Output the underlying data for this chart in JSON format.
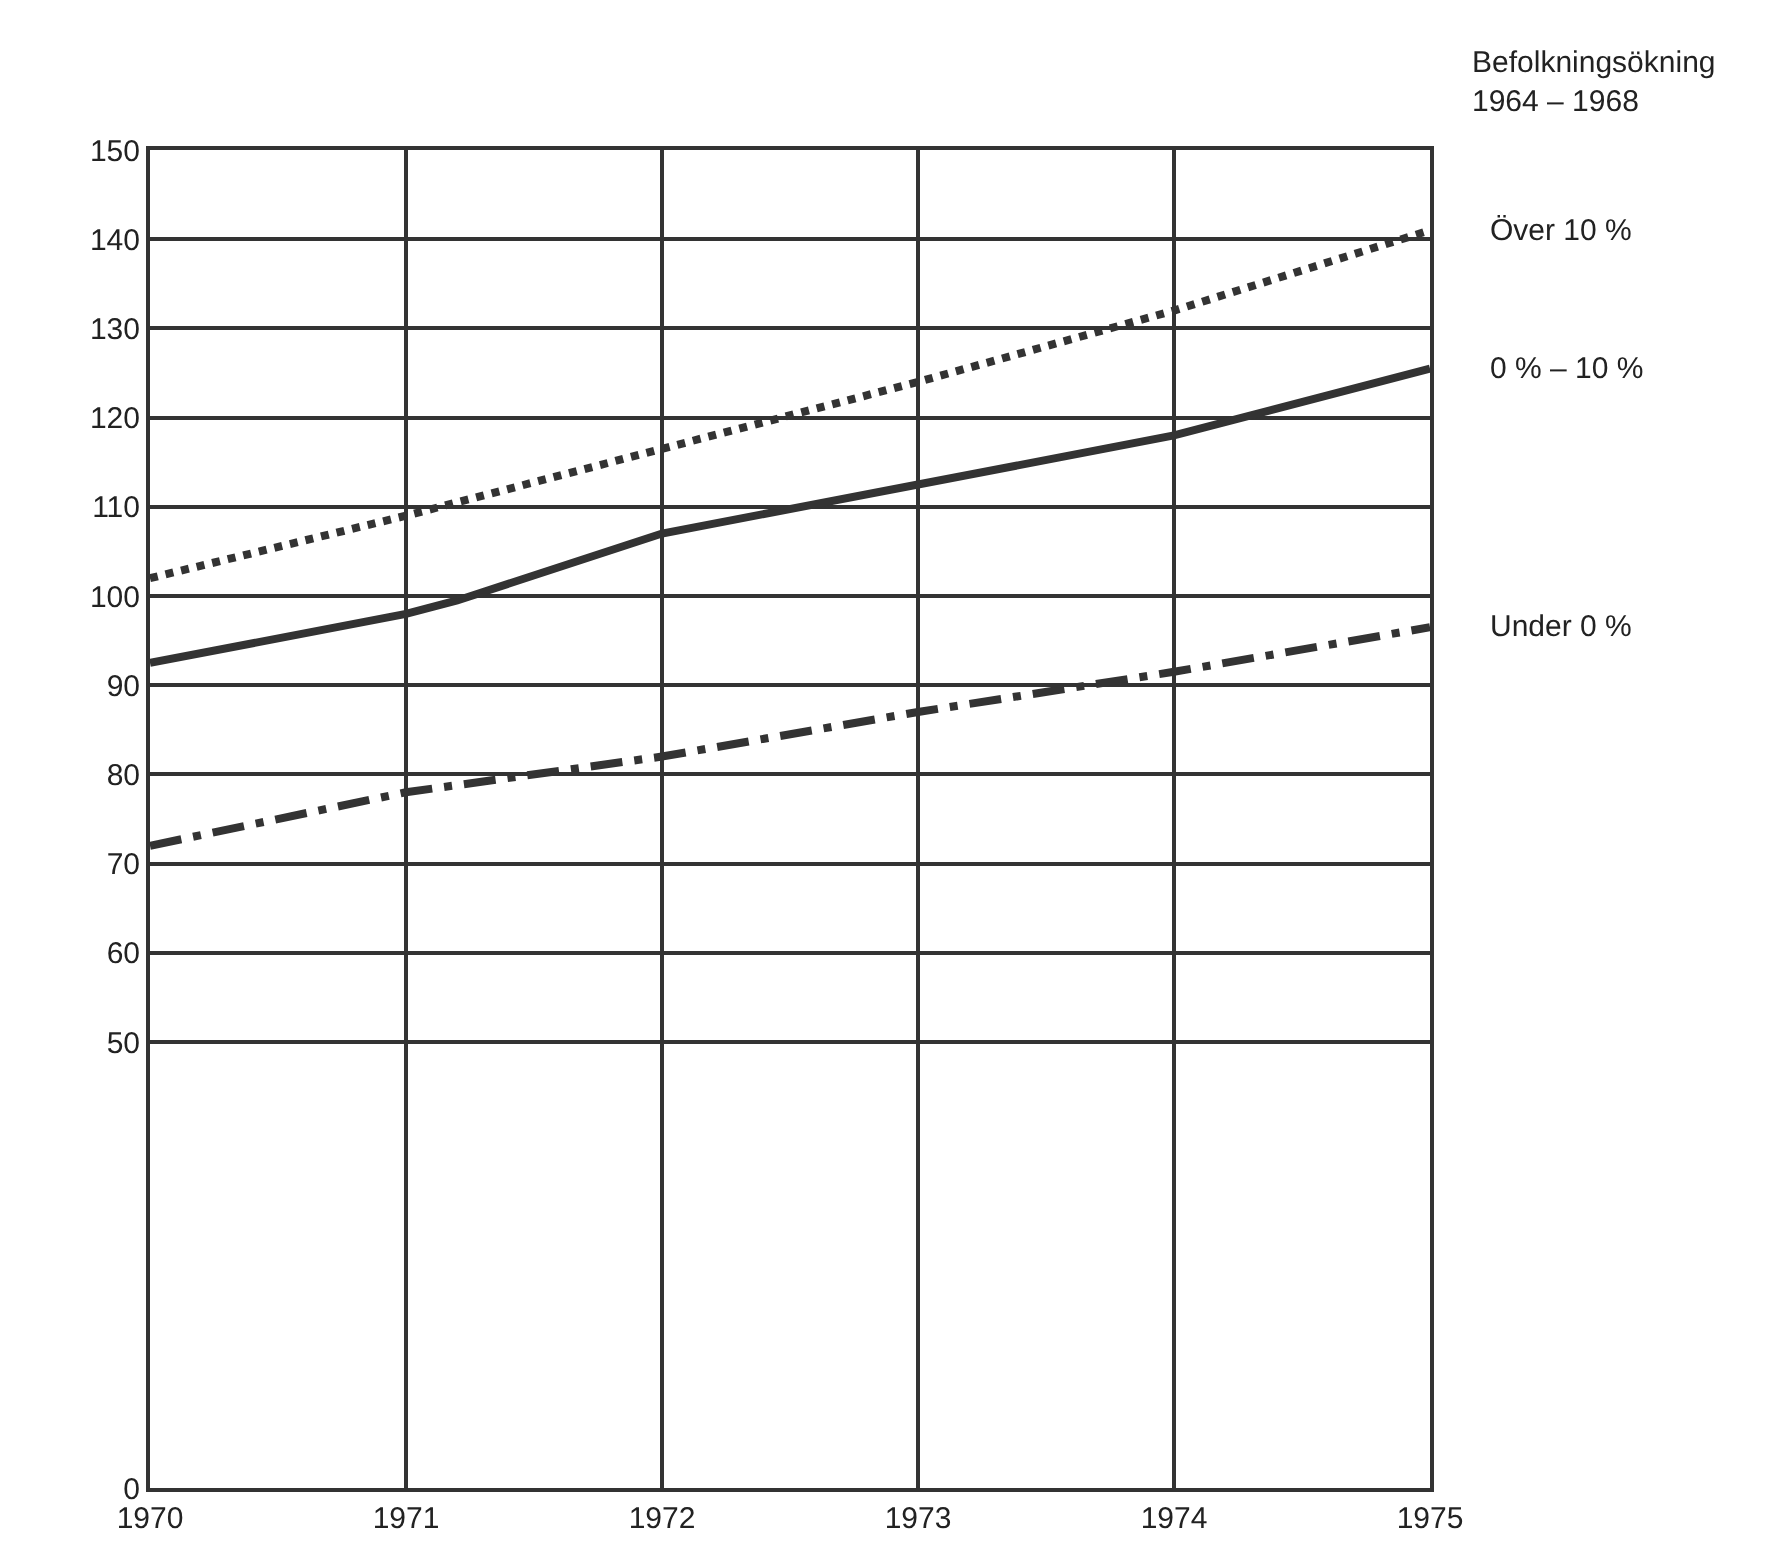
{
  "chart_data": {
    "type": "line",
    "legend_title": "Befolkningsökning\n1964 – 1968",
    "legend": false,
    "grid": true,
    "marker": "none",
    "xlim": [
      1970,
      1975
    ],
    "xticks": [
      1970,
      1971,
      1972,
      1973,
      1974,
      1975
    ],
    "ylim": [
      0,
      150
    ],
    "yticks": [
      0,
      50,
      60,
      70,
      80,
      90,
      100,
      110,
      120,
      130,
      140,
      150
    ],
    "series": [
      {
        "name": "Över 10 %",
        "color": "#333333",
        "line_style": "dotted",
        "x": [
          1970,
          1971,
          1972,
          1973,
          1974,
          1975
        ],
        "values": [
          102,
          109,
          116.5,
          124,
          132,
          141
        ]
      },
      {
        "name": "0 % – 10 %",
        "color": "#333333",
        "line_style": "solid",
        "x": [
          1970,
          1971,
          1971.2,
          1972,
          1973,
          1974,
          1975
        ],
        "values": [
          92.5,
          98,
          99.5,
          107,
          112.5,
          118,
          125.5
        ]
      },
      {
        "name": "Under 0 %",
        "color": "#333333",
        "line_style": "dashed",
        "x": [
          1970,
          1971,
          1972,
          1973,
          1974,
          1975
        ],
        "values": [
          72,
          78,
          82,
          87,
          91.5,
          96.5
        ]
      }
    ]
  }
}
